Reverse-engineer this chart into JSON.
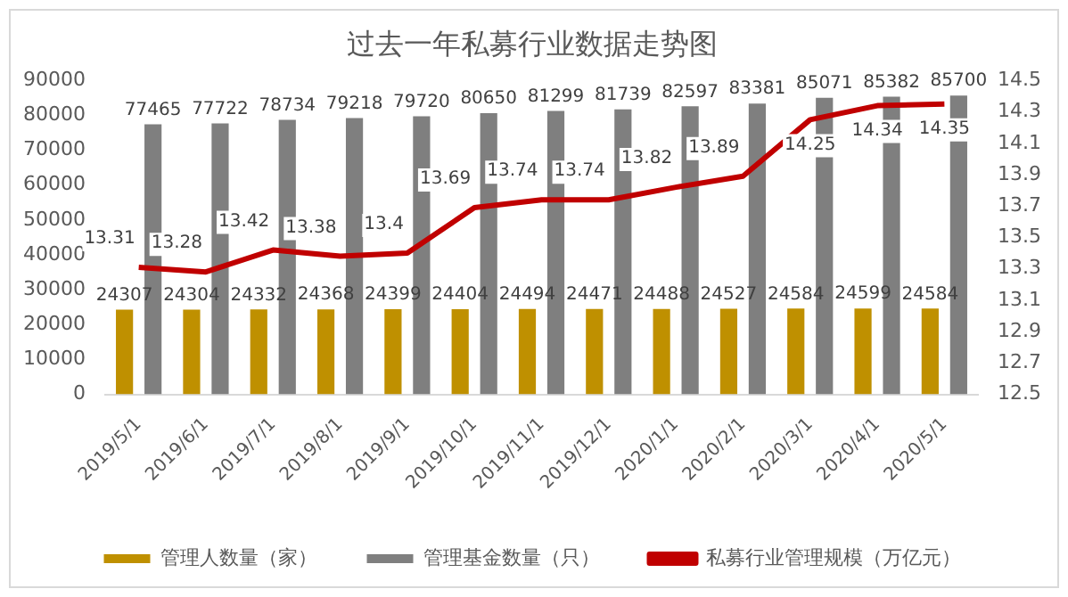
{
  "chart_data": {
    "type": "bar",
    "title": "过去一年私募行业数据走势图",
    "categories": [
      "2019/5/1",
      "2019/6/1",
      "2019/7/1",
      "2019/8/1",
      "2019/9/1",
      "2019/10/1",
      "2019/11/1",
      "2019/12/1",
      "2020/1/1",
      "2020/2/1",
      "2020/3/1",
      "2020/4/1",
      "2020/5/1"
    ],
    "series": [
      {
        "name": "管理人数量（家）",
        "color": "#bf9000",
        "values": [
          24307,
          24304,
          24332,
          24368,
          24399,
          24404,
          24494,
          24471,
          24488,
          24527,
          24584,
          24599,
          24584
        ]
      },
      {
        "name": "管理基金数量（只）",
        "color": "#7f7f7f",
        "values": [
          77465,
          77722,
          78734,
          79218,
          79720,
          80650,
          81299,
          81739,
          82597,
          83381,
          85071,
          85382,
          85700
        ]
      },
      {
        "name": "私募行业管理规模（万亿元）",
        "color": "#c00000",
        "type": "line",
        "axis": "y2",
        "values": [
          13.31,
          13.28,
          13.42,
          13.38,
          13.4,
          13.69,
          13.74,
          13.74,
          13.82,
          13.89,
          14.25,
          14.34,
          14.35
        ]
      }
    ],
    "ylim": [
      0,
      90000
    ],
    "yticks": [
      0,
      10000,
      20000,
      30000,
      40000,
      50000,
      60000,
      70000,
      80000,
      90000
    ],
    "y2lim": [
      12.5,
      14.5
    ],
    "y2ticks": [
      12.5,
      12.7,
      12.9,
      13.1,
      13.3,
      13.5,
      13.7,
      13.9,
      14.1,
      14.3,
      14.5
    ],
    "data_labels": true,
    "legend": "bottom",
    "grid": false,
    "marker": "none"
  }
}
